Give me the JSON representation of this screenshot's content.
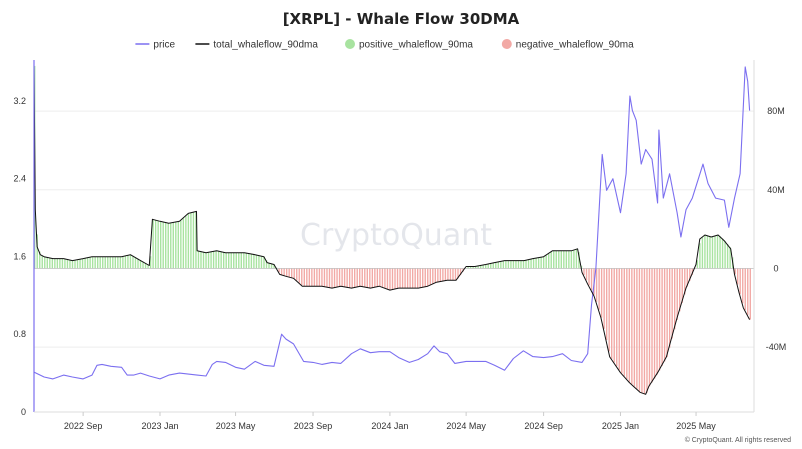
{
  "chart_data": {
    "type": "line",
    "title": "[XRPL] - Whale Flow 30DMA",
    "watermark": "CryptoQuant",
    "copyright": "© CryptoQuant. All rights reserved",
    "legend": [
      {
        "name": "price",
        "kind": "line",
        "color": "#7b6ff0"
      },
      {
        "name": "total_whaleflow_90dma",
        "kind": "line",
        "color": "#111111"
      },
      {
        "name": "positive_whaleflow_90ma",
        "kind": "dot",
        "color": "#a8e3a0"
      },
      {
        "name": "negative_whaleflow_90ma",
        "kind": "dot",
        "color": "#f2a9a5"
      }
    ],
    "x_axis": {
      "start": "2022-06-15",
      "end": "2025-08-01",
      "ticks": [
        {
          "date": "2022-09-01",
          "label": "2022 Sep"
        },
        {
          "date": "2023-01-01",
          "label": "2023 Jan"
        },
        {
          "date": "2023-05-01",
          "label": "2023 May"
        },
        {
          "date": "2023-09-01",
          "label": "2023 Sep"
        },
        {
          "date": "2024-01-01",
          "label": "2024 Jan"
        },
        {
          "date": "2024-05-01",
          "label": "2024 May"
        },
        {
          "date": "2024-09-01",
          "label": "2024 Sep"
        },
        {
          "date": "2025-01-01",
          "label": "2025 Jan"
        },
        {
          "date": "2025-05-01",
          "label": "2025 May"
        }
      ]
    },
    "y_left": {
      "min": 0,
      "max": 3.6,
      "ticks": [
        {
          "value": 0,
          "label": "0"
        },
        {
          "value": 0.8,
          "label": "0.8"
        },
        {
          "value": 1.6,
          "label": "1.6"
        },
        {
          "value": 2.4,
          "label": "2.4"
        },
        {
          "value": 3.2,
          "label": "3.2"
        }
      ]
    },
    "y_right": {
      "min": -73,
      "max": 105,
      "ticks": [
        {
          "value": -40,
          "label": "-40M"
        },
        {
          "value": 0,
          "label": "0"
        },
        {
          "value": 40,
          "label": "40M"
        },
        {
          "value": 80,
          "label": "80M"
        }
      ]
    },
    "series": [
      {
        "name": "price",
        "axis": "left",
        "points": [
          [
            "2022-06-15",
            0.41
          ],
          [
            "2022-07-01",
            0.36
          ],
          [
            "2022-07-15",
            0.34
          ],
          [
            "2022-08-01",
            0.38
          ],
          [
            "2022-08-15",
            0.36
          ],
          [
            "2022-09-01",
            0.34
          ],
          [
            "2022-09-15",
            0.38
          ],
          [
            "2022-09-23",
            0.48
          ],
          [
            "2022-10-01",
            0.49
          ],
          [
            "2022-10-15",
            0.47
          ],
          [
            "2022-11-01",
            0.46
          ],
          [
            "2022-11-10",
            0.38
          ],
          [
            "2022-11-20",
            0.38
          ],
          [
            "2022-12-01",
            0.4
          ],
          [
            "2022-12-15",
            0.37
          ],
          [
            "2023-01-01",
            0.34
          ],
          [
            "2023-01-15",
            0.38
          ],
          [
            "2023-02-01",
            0.4
          ],
          [
            "2023-02-15",
            0.39
          ],
          [
            "2023-03-01",
            0.38
          ],
          [
            "2023-03-15",
            0.37
          ],
          [
            "2023-03-25",
            0.49
          ],
          [
            "2023-04-01",
            0.52
          ],
          [
            "2023-04-15",
            0.51
          ],
          [
            "2023-05-01",
            0.46
          ],
          [
            "2023-05-15",
            0.44
          ],
          [
            "2023-06-01",
            0.52
          ],
          [
            "2023-06-15",
            0.48
          ],
          [
            "2023-07-01",
            0.47
          ],
          [
            "2023-07-13",
            0.8
          ],
          [
            "2023-07-20",
            0.75
          ],
          [
            "2023-08-01",
            0.7
          ],
          [
            "2023-08-17",
            0.52
          ],
          [
            "2023-09-01",
            0.51
          ],
          [
            "2023-09-15",
            0.49
          ],
          [
            "2023-10-01",
            0.51
          ],
          [
            "2023-10-15",
            0.5
          ],
          [
            "2023-11-01",
            0.6
          ],
          [
            "2023-11-15",
            0.65
          ],
          [
            "2023-12-01",
            0.61
          ],
          [
            "2023-12-15",
            0.62
          ],
          [
            "2024-01-01",
            0.62
          ],
          [
            "2024-01-15",
            0.56
          ],
          [
            "2024-02-01",
            0.51
          ],
          [
            "2024-02-15",
            0.54
          ],
          [
            "2024-03-01",
            0.6
          ],
          [
            "2024-03-11",
            0.68
          ],
          [
            "2024-03-20",
            0.62
          ],
          [
            "2024-04-01",
            0.6
          ],
          [
            "2024-04-13",
            0.5
          ],
          [
            "2024-05-01",
            0.52
          ],
          [
            "2024-05-15",
            0.52
          ],
          [
            "2024-06-01",
            0.52
          ],
          [
            "2024-06-15",
            0.48
          ],
          [
            "2024-07-01",
            0.43
          ],
          [
            "2024-07-15",
            0.55
          ],
          [
            "2024-07-31",
            0.63
          ],
          [
            "2024-08-15",
            0.57
          ],
          [
            "2024-09-01",
            0.56
          ],
          [
            "2024-09-15",
            0.57
          ],
          [
            "2024-10-01",
            0.6
          ],
          [
            "2024-10-15",
            0.53
          ],
          [
            "2024-11-01",
            0.51
          ],
          [
            "2024-11-10",
            0.6
          ],
          [
            "2024-11-16",
            1.1
          ],
          [
            "2024-11-23",
            1.48
          ],
          [
            "2024-12-03",
            2.65
          ],
          [
            "2024-12-10",
            2.28
          ],
          [
            "2024-12-20",
            2.4
          ],
          [
            "2025-01-01",
            2.05
          ],
          [
            "2025-01-10",
            2.45
          ],
          [
            "2025-01-16",
            3.25
          ],
          [
            "2025-01-20",
            3.1
          ],
          [
            "2025-01-26",
            3.0
          ],
          [
            "2025-02-03",
            2.55
          ],
          [
            "2025-02-10",
            2.7
          ],
          [
            "2025-02-20",
            2.6
          ],
          [
            "2025-03-01",
            2.15
          ],
          [
            "2025-03-03",
            2.9
          ],
          [
            "2025-03-10",
            2.2
          ],
          [
            "2025-03-20",
            2.45
          ],
          [
            "2025-04-01",
            2.05
          ],
          [
            "2025-04-07",
            1.8
          ],
          [
            "2025-04-15",
            2.08
          ],
          [
            "2025-04-25",
            2.2
          ],
          [
            "2025-05-12",
            2.55
          ],
          [
            "2025-05-20",
            2.35
          ],
          [
            "2025-06-01",
            2.2
          ],
          [
            "2025-06-15",
            2.18
          ],
          [
            "2025-06-22",
            1.9
          ],
          [
            "2025-07-01",
            2.2
          ],
          [
            "2025-07-10",
            2.45
          ],
          [
            "2025-07-18",
            3.55
          ],
          [
            "2025-07-22",
            3.4
          ],
          [
            "2025-07-25",
            3.1
          ]
        ]
      },
      {
        "name": "total_whaleflow_90dma",
        "axis": "right",
        "points": [
          [
            "2022-06-15",
            103
          ],
          [
            "2022-06-17",
            30
          ],
          [
            "2022-06-20",
            11
          ],
          [
            "2022-06-25",
            7
          ],
          [
            "2022-07-01",
            6
          ],
          [
            "2022-07-15",
            5
          ],
          [
            "2022-08-01",
            5
          ],
          [
            "2022-08-15",
            4
          ],
          [
            "2022-09-01",
            5
          ],
          [
            "2022-09-15",
            6
          ],
          [
            "2022-10-01",
            6
          ],
          [
            "2022-10-15",
            6
          ],
          [
            "2022-11-01",
            6
          ],
          [
            "2022-11-15",
            7
          ],
          [
            "2022-12-01",
            4
          ],
          [
            "2022-12-15",
            1.5
          ],
          [
            "2022-12-20",
            25
          ],
          [
            "2023-01-01",
            24
          ],
          [
            "2023-01-15",
            23
          ],
          [
            "2023-02-01",
            24
          ],
          [
            "2023-02-15",
            28
          ],
          [
            "2023-02-28",
            29
          ],
          [
            "2023-03-01",
            9
          ],
          [
            "2023-03-15",
            8
          ],
          [
            "2023-04-01",
            9
          ],
          [
            "2023-04-15",
            8
          ],
          [
            "2023-05-01",
            8
          ],
          [
            "2023-05-15",
            8
          ],
          [
            "2023-06-01",
            7
          ],
          [
            "2023-06-15",
            6
          ],
          [
            "2023-06-20",
            3
          ],
          [
            "2023-07-01",
            2
          ],
          [
            "2023-07-10",
            -3
          ],
          [
            "2023-07-20",
            -4
          ],
          [
            "2023-08-01",
            -5
          ],
          [
            "2023-08-15",
            -9
          ],
          [
            "2023-09-01",
            -9
          ],
          [
            "2023-09-15",
            -9
          ],
          [
            "2023-10-01",
            -10
          ],
          [
            "2023-10-15",
            -9
          ],
          [
            "2023-11-01",
            -10
          ],
          [
            "2023-11-15",
            -9
          ],
          [
            "2023-12-01",
            -10
          ],
          [
            "2023-12-15",
            -9
          ],
          [
            "2024-01-01",
            -11
          ],
          [
            "2024-01-15",
            -10
          ],
          [
            "2024-02-01",
            -10
          ],
          [
            "2024-02-15",
            -10
          ],
          [
            "2024-03-01",
            -9
          ],
          [
            "2024-03-15",
            -7
          ],
          [
            "2024-04-01",
            -6
          ],
          [
            "2024-04-15",
            -6
          ],
          [
            "2024-05-01",
            1
          ],
          [
            "2024-05-15",
            1
          ],
          [
            "2024-06-01",
            2
          ],
          [
            "2024-06-15",
            3
          ],
          [
            "2024-07-01",
            4
          ],
          [
            "2024-07-15",
            4
          ],
          [
            "2024-08-01",
            4
          ],
          [
            "2024-08-15",
            5
          ],
          [
            "2024-09-01",
            6
          ],
          [
            "2024-09-15",
            9
          ],
          [
            "2024-10-01",
            9
          ],
          [
            "2024-10-15",
            9
          ],
          [
            "2024-10-25",
            10
          ],
          [
            "2024-11-01",
            -2
          ],
          [
            "2024-11-10",
            -8
          ],
          [
            "2024-11-20",
            -14
          ],
          [
            "2024-12-01",
            -25
          ],
          [
            "2024-12-15",
            -45
          ],
          [
            "2025-01-01",
            -53
          ],
          [
            "2025-01-15",
            -58
          ],
          [
            "2025-02-01",
            -63
          ],
          [
            "2025-02-10",
            -64
          ],
          [
            "2025-02-15",
            -60
          ],
          [
            "2025-03-01",
            -53
          ],
          [
            "2025-03-15",
            -45
          ],
          [
            "2025-04-01",
            -25
          ],
          [
            "2025-04-15",
            -10
          ],
          [
            "2025-05-01",
            2
          ],
          [
            "2025-05-07",
            15
          ],
          [
            "2025-05-15",
            17
          ],
          [
            "2025-05-25",
            16
          ],
          [
            "2025-06-05",
            17
          ],
          [
            "2025-06-15",
            14
          ],
          [
            "2025-06-25",
            10
          ],
          [
            "2025-07-01",
            -3
          ],
          [
            "2025-07-08",
            -12
          ],
          [
            "2025-07-15",
            -20
          ],
          [
            "2025-07-25",
            -26
          ]
        ]
      }
    ]
  }
}
